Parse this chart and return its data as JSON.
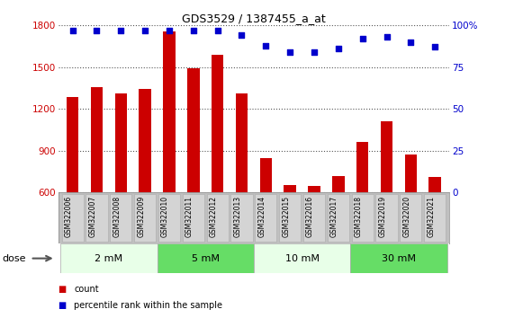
{
  "title": "GDS3529 / 1387455_a_at",
  "categories": [
    "GSM322006",
    "GSM322007",
    "GSM322008",
    "GSM322009",
    "GSM322010",
    "GSM322011",
    "GSM322012",
    "GSM322013",
    "GSM322014",
    "GSM322015",
    "GSM322016",
    "GSM322017",
    "GSM322018",
    "GSM322019",
    "GSM322020",
    "GSM322021"
  ],
  "bar_values": [
    1285,
    1355,
    1310,
    1345,
    1760,
    1490,
    1590,
    1310,
    845,
    650,
    645,
    720,
    960,
    1110,
    870,
    710
  ],
  "percentile_values": [
    97,
    97,
    97,
    97,
    97,
    97,
    97,
    94,
    88,
    84,
    84,
    86,
    92,
    93,
    90,
    87
  ],
  "bar_color": "#cc0000",
  "dot_color": "#0000cc",
  "ylim_left": [
    600,
    1800
  ],
  "ylim_right": [
    0,
    100
  ],
  "yticks_left": [
    600,
    900,
    1200,
    1500,
    1800
  ],
  "yticks_right": [
    0,
    25,
    50,
    75,
    100
  ],
  "dose_groups": [
    {
      "label": "2 mM",
      "start": 0,
      "end": 4,
      "color": "#e8ffe8"
    },
    {
      "label": "5 mM",
      "start": 4,
      "end": 8,
      "color": "#66dd66"
    },
    {
      "label": "10 mM",
      "start": 8,
      "end": 12,
      "color": "#e8ffe8"
    },
    {
      "label": "30 mM",
      "start": 12,
      "end": 16,
      "color": "#66dd66"
    }
  ],
  "dose_label": "dose",
  "legend_count_label": "count",
  "legend_percentile_label": "percentile rank within the sample",
  "background_color": "#ffffff",
  "plot_bg_color": "#ffffff",
  "xlabel_bg_color": "#c0c0c0",
  "xsample_box_color": "#d4d4d4",
  "title_color": "#000000",
  "left_axis_color": "#cc0000",
  "right_axis_color": "#0000cc"
}
